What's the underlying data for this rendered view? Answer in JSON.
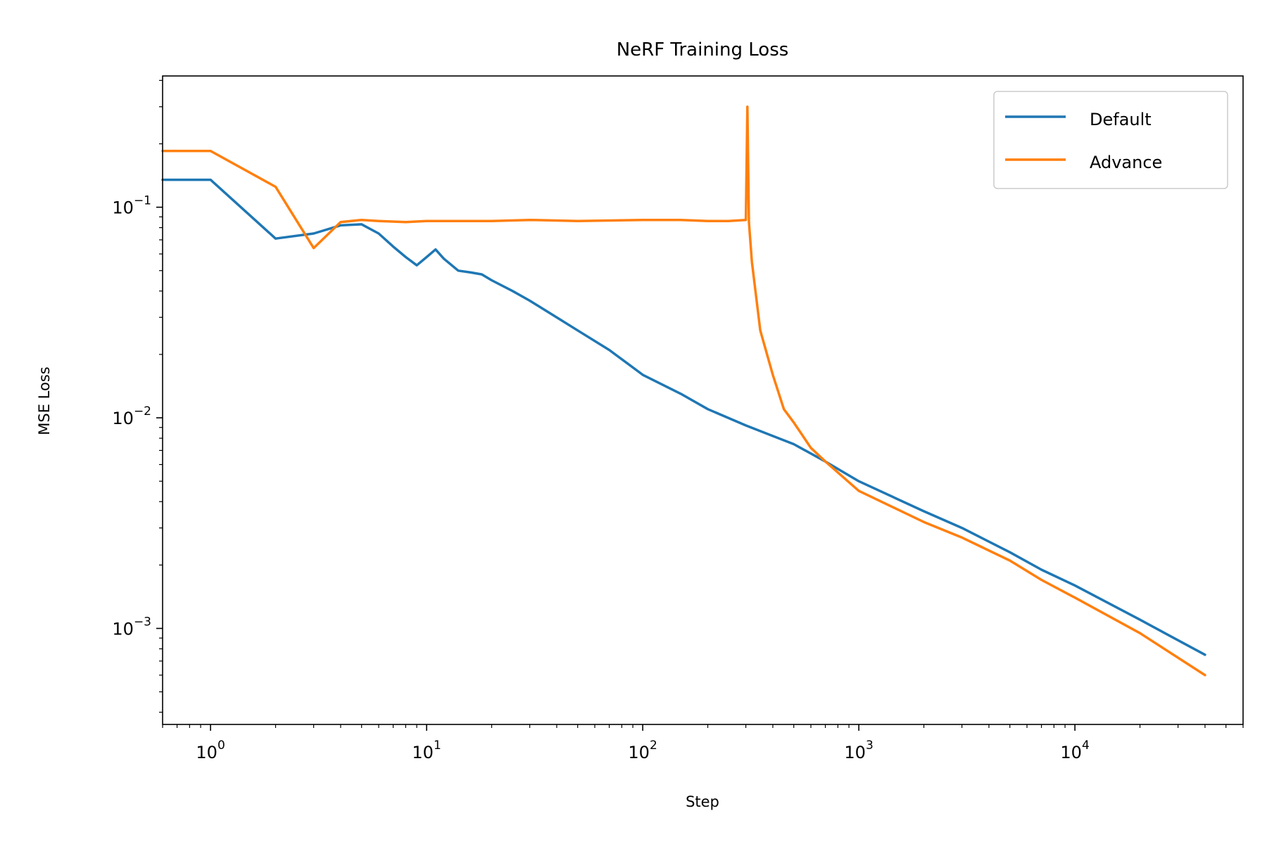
{
  "chart_data": {
    "type": "line",
    "title": "NeRF Training Loss",
    "xlabel": "Step",
    "ylabel": "MSE Loss",
    "xscale": "log",
    "yscale": "log",
    "xlim": [
      0.6,
      60000
    ],
    "ylim": [
      0.00035,
      0.42
    ],
    "grid": false,
    "legend_position": "top-right",
    "xticks": [
      {
        "value": 1,
        "base": "10",
        "exp": "0"
      },
      {
        "value": 10,
        "base": "10",
        "exp": "1"
      },
      {
        "value": 100,
        "base": "10",
        "exp": "2"
      },
      {
        "value": 1000,
        "base": "10",
        "exp": "3"
      },
      {
        "value": 10000,
        "base": "10",
        "exp": "4"
      }
    ],
    "yticks": [
      {
        "value": 0.1,
        "base": "10",
        "exp": "−1"
      },
      {
        "value": 0.01,
        "base": "10",
        "exp": "−2"
      },
      {
        "value": 0.001,
        "base": "10",
        "exp": "−3"
      }
    ],
    "series": [
      {
        "name": "Default",
        "color": "#1f77b4",
        "x": [
          0.6,
          1,
          2,
          3,
          4,
          5,
          6,
          7,
          8,
          9,
          10,
          11,
          12,
          14,
          16,
          18,
          20,
          25,
          30,
          40,
          50,
          70,
          100,
          150,
          200,
          300,
          400,
          500,
          700,
          1000,
          2000,
          3000,
          5000,
          7000,
          10000,
          20000,
          40000
        ],
        "y": [
          0.135,
          0.135,
          0.071,
          0.075,
          0.082,
          0.083,
          0.075,
          0.065,
          0.058,
          0.053,
          0.058,
          0.063,
          0.057,
          0.05,
          0.049,
          0.048,
          0.045,
          0.04,
          0.036,
          0.03,
          0.026,
          0.021,
          0.016,
          0.013,
          0.011,
          0.0092,
          0.0082,
          0.0075,
          0.0062,
          0.005,
          0.0036,
          0.003,
          0.0023,
          0.0019,
          0.0016,
          0.0011,
          0.00075
        ]
      },
      {
        "name": "Advance",
        "color": "#ff7f0e",
        "x": [
          0.6,
          1,
          2,
          3,
          4,
          5,
          6,
          8,
          10,
          15,
          20,
          30,
          50,
          100,
          150,
          200,
          250,
          300,
          305,
          310,
          320,
          350,
          400,
          450,
          500,
          600,
          700,
          800,
          1000,
          2000,
          3000,
          5000,
          7000,
          10000,
          20000,
          40000
        ],
        "y": [
          0.185,
          0.185,
          0.125,
          0.064,
          0.085,
          0.087,
          0.086,
          0.085,
          0.086,
          0.086,
          0.086,
          0.087,
          0.086,
          0.087,
          0.087,
          0.086,
          0.086,
          0.087,
          0.3,
          0.085,
          0.055,
          0.026,
          0.016,
          0.011,
          0.0095,
          0.0072,
          0.0062,
          0.0055,
          0.0045,
          0.0032,
          0.0027,
          0.0021,
          0.0017,
          0.0014,
          0.00095,
          0.0006
        ]
      }
    ]
  }
}
